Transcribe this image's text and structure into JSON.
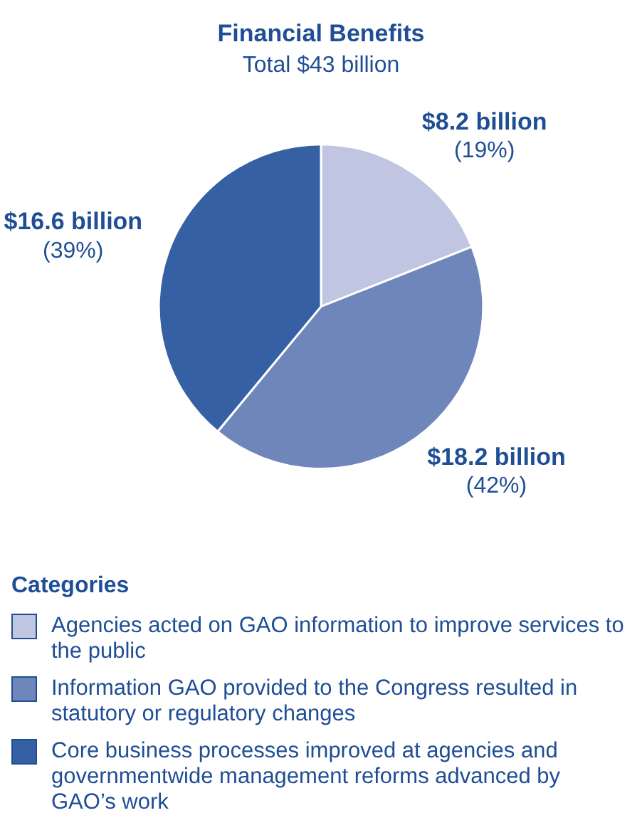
{
  "chart_data": {
    "type": "pie",
    "title": "Financial Benefits",
    "subtitle": "Total $43 billion",
    "legend_title": "Categories",
    "legend": "bottom",
    "categories": [
      "Agencies acted on GAO information to improve services to the public",
      "Information GAO provided to the Congress resulted in statutory or regulatory changes",
      "Core business processes improved at agencies and governmentwide management reforms advanced by GAO’s work"
    ],
    "values": [
      19,
      42,
      39
    ],
    "colors": [
      "#c0c6e2",
      "#6f86bb",
      "#3560a4"
    ],
    "value_labels": [
      "$8.2 billion\n(19%)",
      "$18.2 billion\n(42%)",
      "$16.6 billion\n(39%)"
    ]
  }
}
